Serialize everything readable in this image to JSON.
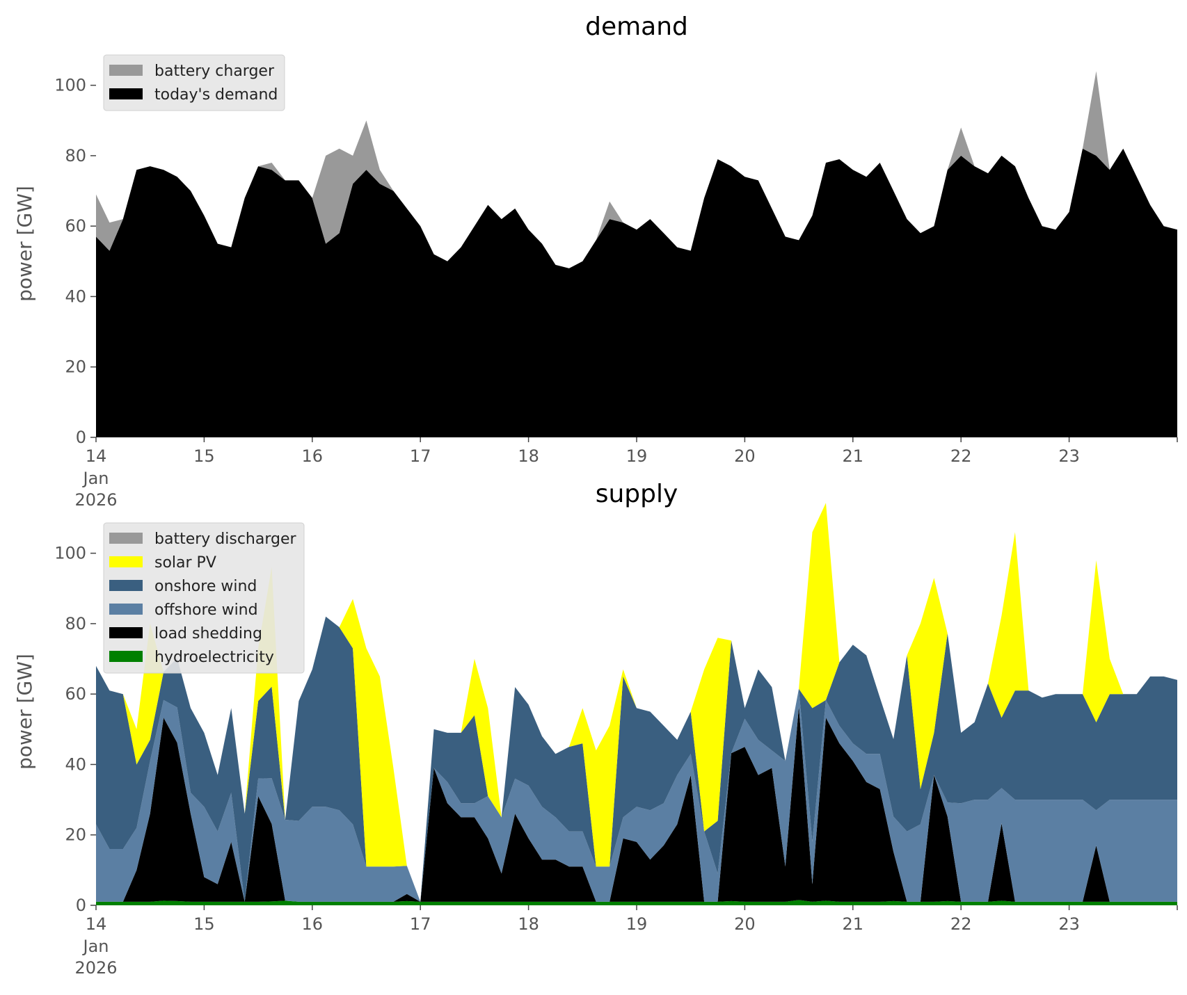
{
  "chart_data": [
    {
      "type": "area",
      "title": "demand",
      "ylabel": "power [GW]",
      "xlabel": "",
      "xlim": [
        "2026-01-14",
        "2026-01-24"
      ],
      "ylim": [
        0,
        110
      ],
      "yticks": [
        0,
        20,
        40,
        60,
        80,
        100
      ],
      "xticks": [
        {
          "date": "2026-01-14",
          "label": "14",
          "label2": "Jan",
          "label3": "2026"
        },
        {
          "date": "2026-01-15",
          "label": "15"
        },
        {
          "date": "2026-01-16",
          "label": "16"
        },
        {
          "date": "2026-01-17",
          "label": "17"
        },
        {
          "date": "2026-01-18",
          "label": "18"
        },
        {
          "date": "2026-01-19",
          "label": "19"
        },
        {
          "date": "2026-01-20",
          "label": "20"
        },
        {
          "date": "2026-01-21",
          "label": "21"
        },
        {
          "date": "2026-01-22",
          "label": "22"
        },
        {
          "date": "2026-01-23",
          "label": "23"
        }
      ],
      "legend_location": "upper-left",
      "background": "#ffffff",
      "x": [
        "2026-01-14 00:00",
        "2026-01-14 03:00",
        "2026-01-14 06:00",
        "2026-01-14 09:00",
        "2026-01-14 12:00",
        "2026-01-14 15:00",
        "2026-01-14 18:00",
        "2026-01-14 21:00",
        "2026-01-15 00:00",
        "2026-01-15 03:00",
        "2026-01-15 06:00",
        "2026-01-15 09:00",
        "2026-01-15 12:00",
        "2026-01-15 15:00",
        "2026-01-15 18:00",
        "2026-01-15 21:00",
        "2026-01-16 00:00",
        "2026-01-16 03:00",
        "2026-01-16 06:00",
        "2026-01-16 09:00",
        "2026-01-16 12:00",
        "2026-01-16 15:00",
        "2026-01-16 18:00",
        "2026-01-16 21:00",
        "2026-01-17 00:00",
        "2026-01-17 03:00",
        "2026-01-17 06:00",
        "2026-01-17 09:00",
        "2026-01-17 12:00",
        "2026-01-17 15:00",
        "2026-01-17 18:00",
        "2026-01-17 21:00",
        "2026-01-18 00:00",
        "2026-01-18 03:00",
        "2026-01-18 06:00",
        "2026-01-18 09:00",
        "2026-01-18 12:00",
        "2026-01-18 15:00",
        "2026-01-18 18:00",
        "2026-01-18 21:00",
        "2026-01-19 00:00",
        "2026-01-19 03:00",
        "2026-01-19 06:00",
        "2026-01-19 09:00",
        "2026-01-19 12:00",
        "2026-01-19 15:00",
        "2026-01-19 18:00",
        "2026-01-19 21:00",
        "2026-01-20 00:00",
        "2026-01-20 03:00",
        "2026-01-20 06:00",
        "2026-01-20 09:00",
        "2026-01-20 12:00",
        "2026-01-20 15:00",
        "2026-01-20 18:00",
        "2026-01-20 21:00",
        "2026-01-21 00:00",
        "2026-01-21 03:00",
        "2026-01-21 06:00",
        "2026-01-21 09:00",
        "2026-01-21 12:00",
        "2026-01-21 15:00",
        "2026-01-21 18:00",
        "2026-01-21 21:00",
        "2026-01-22 00:00",
        "2026-01-22 03:00",
        "2026-01-22 06:00",
        "2026-01-22 09:00",
        "2026-01-22 12:00",
        "2026-01-22 15:00",
        "2026-01-22 18:00",
        "2026-01-22 21:00",
        "2026-01-23 00:00",
        "2026-01-23 03:00",
        "2026-01-23 06:00",
        "2026-01-23 09:00",
        "2026-01-23 12:00",
        "2026-01-23 15:00",
        "2026-01-23 18:00",
        "2026-01-23 21:00",
        "2026-01-24 00:00"
      ],
      "series": [
        {
          "name": "today's demand",
          "color": "#000000",
          "values": [
            57,
            53,
            62,
            76,
            77,
            76,
            74,
            70,
            63,
            55,
            54,
            68,
            77,
            76,
            73,
            73,
            68,
            55,
            58,
            72,
            76,
            72,
            70,
            65,
            60,
            52,
            50,
            54,
            60,
            66,
            62,
            65,
            59,
            55,
            49,
            48,
            50,
            56,
            62,
            61,
            59,
            62,
            58,
            54,
            53,
            68,
            79,
            77,
            74,
            73,
            65,
            57,
            56,
            63,
            78,
            79,
            76,
            74,
            78,
            70,
            62,
            58,
            60,
            76,
            80,
            77,
            75,
            80,
            77,
            68,
            60,
            59,
            64,
            82,
            80,
            76,
            82,
            74,
            66,
            60,
            59
          ]
        },
        {
          "name": "battery charger",
          "color": "#999999",
          "values": [
            12,
            8,
            0,
            0,
            0,
            0,
            0,
            0,
            0,
            0,
            0,
            0,
            0,
            2,
            0,
            0,
            0,
            25,
            24,
            8,
            14,
            4,
            0,
            0,
            0,
            0,
            0,
            0,
            0,
            0,
            0,
            0,
            0,
            0,
            0,
            0,
            0,
            0,
            5,
            0,
            0,
            0,
            0,
            0,
            0,
            0,
            0,
            0,
            0,
            0,
            0,
            0,
            0,
            0,
            0,
            0,
            0,
            0,
            0,
            0,
            0,
            0,
            0,
            0,
            8,
            0,
            0,
            0,
            0,
            0,
            0,
            0,
            0,
            0,
            24,
            0,
            0,
            0,
            0,
            0,
            0
          ]
        }
      ]
    },
    {
      "type": "area",
      "title": "supply",
      "ylabel": "power [GW]",
      "xlabel": "",
      "xlim": [
        "2026-01-14",
        "2026-01-24"
      ],
      "ylim": [
        0,
        110
      ],
      "yticks": [
        0,
        20,
        40,
        60,
        80,
        100
      ],
      "legend_location": "upper-left",
      "x": [
        "2026-01-14 00:00",
        "2026-01-14 03:00",
        "2026-01-14 06:00",
        "2026-01-14 09:00",
        "2026-01-14 12:00",
        "2026-01-14 15:00",
        "2026-01-14 18:00",
        "2026-01-14 21:00",
        "2026-01-15 00:00",
        "2026-01-15 03:00",
        "2026-01-15 06:00",
        "2026-01-15 09:00",
        "2026-01-15 12:00",
        "2026-01-15 15:00",
        "2026-01-15 18:00",
        "2026-01-15 21:00",
        "2026-01-16 00:00",
        "2026-01-16 03:00",
        "2026-01-16 06:00",
        "2026-01-16 09:00",
        "2026-01-16 12:00",
        "2026-01-16 15:00",
        "2026-01-16 18:00",
        "2026-01-16 21:00",
        "2026-01-17 00:00",
        "2026-01-17 03:00",
        "2026-01-17 06:00",
        "2026-01-17 09:00",
        "2026-01-17 12:00",
        "2026-01-17 15:00",
        "2026-01-17 18:00",
        "2026-01-17 21:00",
        "2026-01-18 00:00",
        "2026-01-18 03:00",
        "2026-01-18 06:00",
        "2026-01-18 09:00",
        "2026-01-18 12:00",
        "2026-01-18 15:00",
        "2026-01-18 18:00",
        "2026-01-18 21:00",
        "2026-01-19 00:00",
        "2026-01-19 03:00",
        "2026-01-19 06:00",
        "2026-01-19 09:00",
        "2026-01-19 12:00",
        "2026-01-19 15:00",
        "2026-01-19 18:00",
        "2026-01-19 21:00",
        "2026-01-20 00:00",
        "2026-01-20 03:00",
        "2026-01-20 06:00",
        "2026-01-20 09:00",
        "2026-01-20 12:00",
        "2026-01-20 15:00",
        "2026-01-20 18:00",
        "2026-01-20 21:00",
        "2026-01-21 00:00",
        "2026-01-21 03:00",
        "2026-01-21 06:00",
        "2026-01-21 09:00",
        "2026-01-21 12:00",
        "2026-01-21 15:00",
        "2026-01-21 18:00",
        "2026-01-21 21:00",
        "2026-01-22 00:00",
        "2026-01-22 03:00",
        "2026-01-22 06:00",
        "2026-01-22 09:00",
        "2026-01-22 12:00",
        "2026-01-22 15:00",
        "2026-01-22 18:00",
        "2026-01-22 21:00",
        "2026-01-23 00:00",
        "2026-01-23 03:00",
        "2026-01-23 06:00",
        "2026-01-23 09:00",
        "2026-01-23 12:00",
        "2026-01-23 15:00",
        "2026-01-23 18:00",
        "2026-01-23 21:00",
        "2026-01-24 00:00"
      ],
      "series": [
        {
          "name": "hydroelectricity",
          "color": "#008000",
          "values": [
            1,
            1,
            1,
            1,
            1,
            1.3,
            1.2,
            1,
            1,
            1,
            1,
            1,
            1,
            1.1,
            1.3,
            1,
            1,
            1,
            1,
            1,
            1,
            1,
            1,
            1.2,
            1,
            1,
            1,
            1,
            1,
            1,
            1,
            1,
            1,
            1,
            1,
            1,
            1,
            1,
            1,
            1,
            1,
            1,
            1,
            1,
            1,
            1,
            1,
            1.2,
            1,
            1,
            1,
            1,
            1.5,
            1,
            1.3,
            1,
            1,
            1,
            1,
            1.2,
            1,
            1,
            1,
            1.2,
            1,
            1,
            1,
            1.3,
            1,
            1,
            1,
            1,
            1,
            1,
            1,
            1,
            1,
            1,
            1,
            1,
            1
          ]
        },
        {
          "name": "load shedding",
          "color": "#000000",
          "values": [
            0,
            0,
            0,
            9,
            25,
            52,
            45,
            25,
            7,
            5,
            17,
            0,
            30,
            22,
            0,
            0,
            0,
            0,
            0,
            0,
            0,
            0,
            0,
            2,
            0,
            38,
            28,
            24,
            24,
            18,
            8,
            25,
            18,
            12,
            12,
            10,
            10,
            0,
            0,
            18,
            17,
            12,
            16,
            22,
            36,
            0,
            0,
            42,
            44,
            36,
            38,
            10,
            55,
            5,
            52,
            45,
            40,
            34,
            32,
            14,
            0,
            0,
            36,
            24,
            0,
            0,
            0,
            22,
            0,
            0,
            0,
            0,
            0,
            0,
            16,
            0,
            0,
            0,
            0,
            0,
            0
          ]
        },
        {
          "name": "offshore wind",
          "color": "#5b7fa3",
          "values": [
            22,
            15,
            15,
            12,
            15,
            5,
            10,
            6,
            20,
            15,
            14,
            0,
            5,
            13,
            23,
            23,
            27,
            27,
            26,
            22,
            10,
            10,
            10,
            8,
            0,
            0,
            6,
            4,
            4,
            12,
            16,
            10,
            15,
            15,
            12,
            10,
            10,
            10,
            10,
            6,
            10,
            14,
            12,
            14,
            6,
            20,
            8,
            0,
            8,
            10,
            5,
            30,
            5,
            12,
            5,
            5,
            5,
            8,
            10,
            10,
            20,
            22,
            0,
            4,
            28,
            29,
            29,
            10,
            29,
            29,
            29,
            29,
            29,
            29,
            10,
            29,
            29,
            29,
            29,
            29,
            29
          ]
        },
        {
          "name": "onshore wind",
          "color": "#3a5f80",
          "values": [
            45,
            45,
            44,
            18,
            6,
            8,
            14,
            24,
            21,
            16,
            24,
            25,
            22,
            26,
            0,
            34,
            39,
            54,
            52,
            50,
            0,
            0,
            0,
            0,
            0,
            11,
            14,
            20,
            25,
            0,
            0,
            26,
            23,
            20,
            18,
            24,
            25,
            0,
            0,
            40,
            28,
            28,
            22,
            10,
            12,
            0,
            15,
            32,
            3,
            20,
            18,
            0,
            0,
            38,
            0,
            18,
            28,
            28,
            16,
            22,
            50,
            10,
            12,
            48,
            20,
            22,
            33,
            20,
            31,
            31,
            29,
            30,
            30,
            30,
            25,
            30,
            30,
            30,
            35,
            35,
            34
          ]
        },
        {
          "name": "solar PV",
          "color": "#ffff00",
          "values": [
            0,
            0,
            0,
            10,
            33,
            0,
            0,
            0,
            0,
            0,
            0,
            0,
            15,
            34,
            0,
            0,
            0,
            0,
            0,
            14,
            62,
            54,
            28,
            0,
            0,
            0,
            0,
            0,
            16,
            25,
            0,
            0,
            0,
            0,
            0,
            0,
            10,
            33,
            40,
            2,
            0,
            0,
            0,
            0,
            0,
            46,
            52,
            0,
            0,
            0,
            0,
            0,
            0,
            50,
            56,
            0,
            0,
            0,
            0,
            0,
            0,
            47,
            44,
            0,
            0,
            0,
            0,
            29,
            45,
            0,
            0,
            0,
            0,
            0,
            46,
            10,
            0,
            0,
            0,
            0,
            0
          ]
        },
        {
          "name": "battery discharger",
          "color": "#999999",
          "values": [
            0,
            0,
            0,
            0,
            0,
            0,
            0,
            0,
            0,
            0,
            0,
            0,
            0,
            0,
            0,
            0,
            0,
            0,
            0,
            0,
            0,
            0,
            0,
            0,
            0,
            0,
            0,
            0,
            0,
            0,
            0,
            0,
            0,
            0,
            0,
            0,
            0,
            0,
            0,
            0,
            0,
            0,
            0,
            0,
            0,
            0,
            0,
            0,
            0,
            0,
            0,
            0,
            0,
            0,
            0,
            0,
            0,
            0,
            0,
            0,
            0,
            0,
            0,
            0,
            0,
            0,
            0,
            0,
            0,
            0,
            0,
            0,
            0,
            0,
            0,
            0,
            0,
            0,
            0,
            0,
            0
          ]
        }
      ]
    }
  ]
}
